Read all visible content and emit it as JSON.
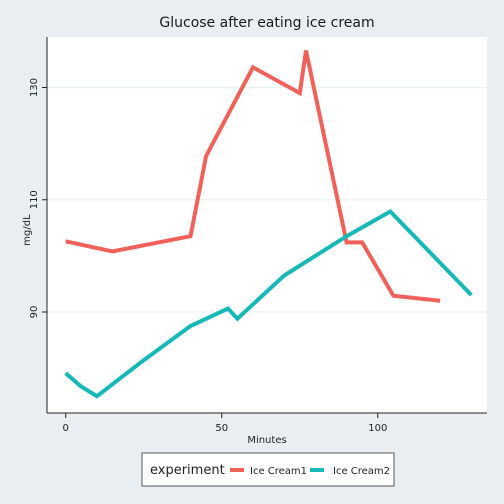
{
  "chart_data": {
    "type": "line",
    "title": "Glucose after eating ice cream",
    "xlabel": "Minutes",
    "ylabel": "mg/dL",
    "xlim": [
      -6,
      135
    ],
    "ylim": [
      72,
      139
    ],
    "xticks": [
      0,
      50,
      100
    ],
    "yticks": [
      90,
      110,
      130
    ],
    "grid": true,
    "legend_position": "bottom",
    "legend_title": "experiment",
    "series": [
      {
        "name": "Ice Cream1",
        "color": "#f0615a",
        "points": [
          [
            0,
            102.6
          ],
          [
            15,
            100.8
          ],
          [
            40,
            103.5
          ],
          [
            45,
            117.8
          ],
          [
            60,
            133.6
          ],
          [
            75,
            129
          ],
          [
            77,
            136.6
          ],
          [
            90,
            102.4
          ],
          [
            95,
            102.4
          ],
          [
            105,
            92.9
          ],
          [
            120,
            92
          ]
        ]
      },
      {
        "name": "Ice Cream2",
        "color": "#17b8b8",
        "points": [
          [
            0,
            79.1
          ],
          [
            5,
            76.7
          ],
          [
            10,
            75
          ],
          [
            25,
            81.4
          ],
          [
            40,
            87.5
          ],
          [
            52,
            90.6
          ],
          [
            55,
            88.8
          ],
          [
            70,
            96.5
          ],
          [
            90,
            103.5
          ],
          [
            104,
            107.9
          ],
          [
            130,
            93
          ]
        ]
      }
    ]
  }
}
